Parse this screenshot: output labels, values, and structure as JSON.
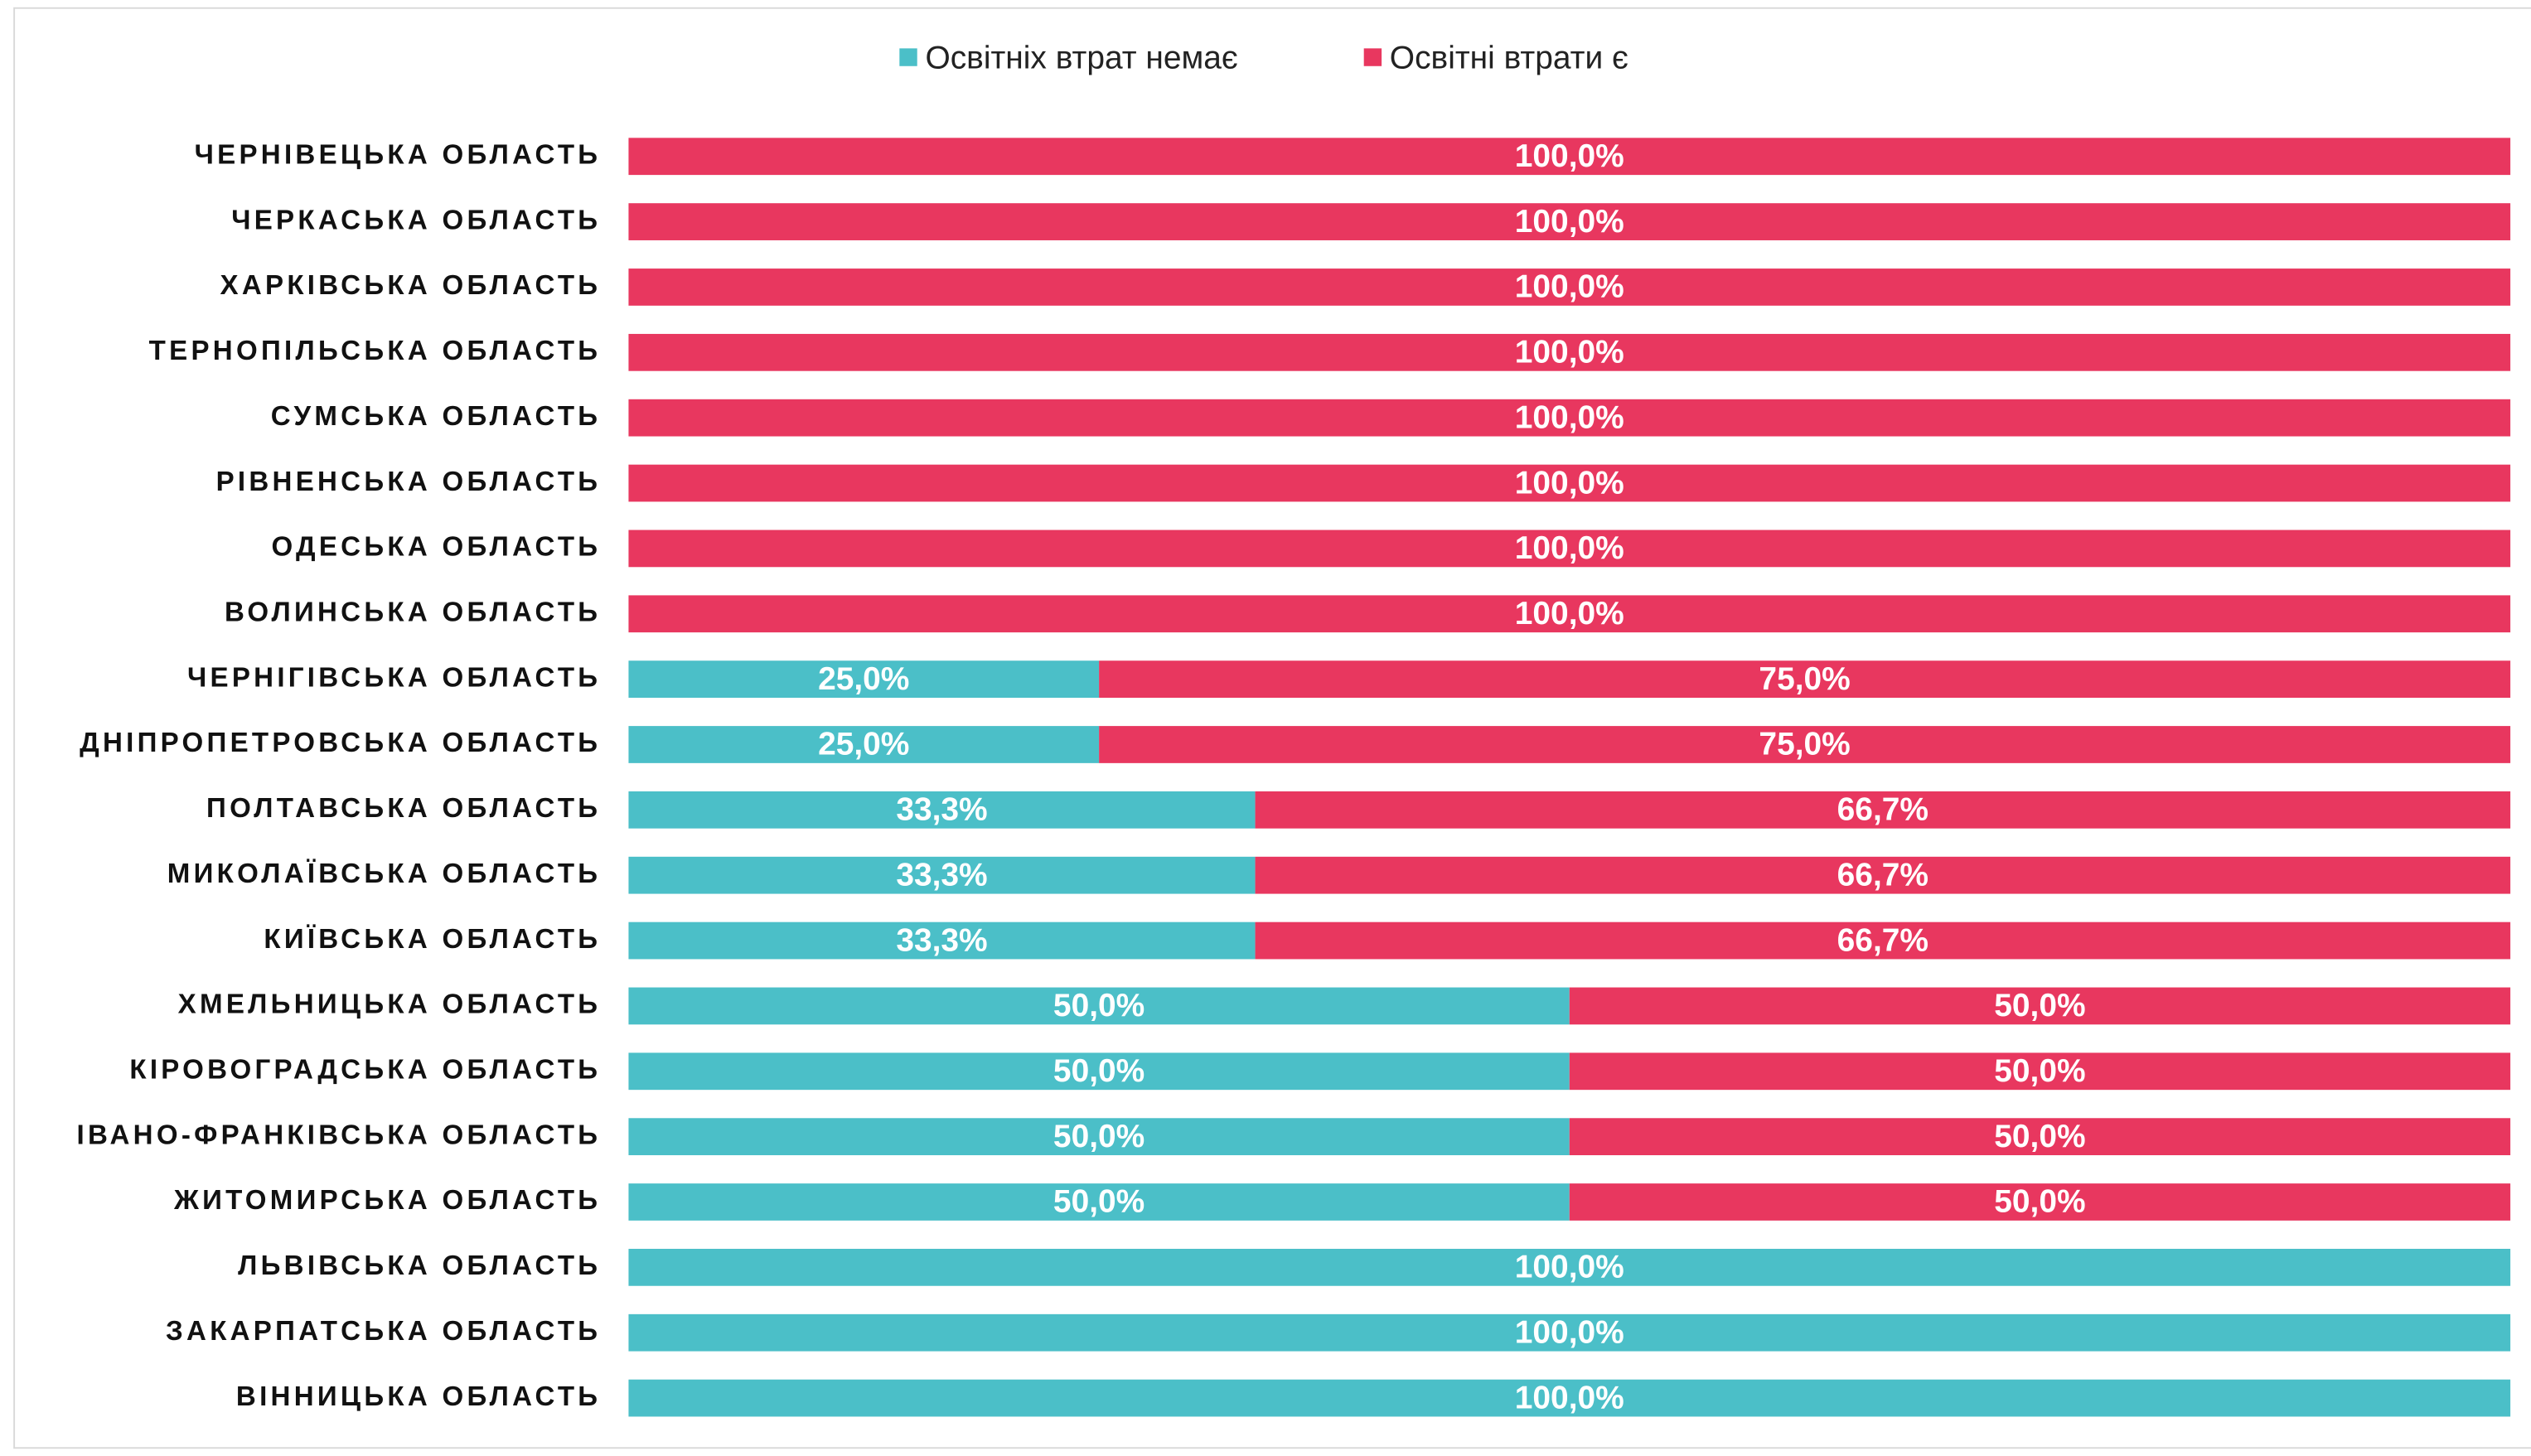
{
  "chart_data": {
    "type": "stacked-barh",
    "categories": [
      "ЧЕРНІВЕЦЬКА ОБЛАСТЬ",
      "ЧЕРКАСЬКА ОБЛАСТЬ",
      "ХАРКІВСЬКА ОБЛАСТЬ",
      "ТЕРНОПІЛЬСЬКА ОБЛАСТЬ",
      "СУМСЬКА ОБЛАСТЬ",
      "РІВНЕНСЬКА ОБЛАСТЬ",
      "ОДЕСЬКА ОБЛАСТЬ",
      "ВОЛИНСЬКА ОБЛАСТЬ",
      "ЧЕРНІГІВСЬКА ОБЛАСТЬ",
      "ДНІПРОПЕТРОВСЬКА ОБЛАСТЬ",
      "ПОЛТАВСЬКА ОБЛАСТЬ",
      "МИКОЛАЇВСЬКА ОБЛАСТЬ",
      "КИЇВСЬКА ОБЛАСТЬ",
      "ХМЕЛЬНИЦЬКА ОБЛАСТЬ",
      "КІРОВОГРАДСЬКА ОБЛАСТЬ",
      "ІВАНО-ФРАНКІВСЬКА ОБЛАСТЬ",
      "ЖИТОМИРСЬКА ОБЛАСТЬ",
      "ЛЬВІВСЬКА ОБЛАСТЬ",
      "ЗАКАРПАТСЬКА ОБЛАСТЬ",
      "ВІННИЦЬКА ОБЛАСТЬ"
    ],
    "series": [
      {
        "name": "Освітніх втрат немає",
        "color": "#4bbfc8",
        "values": [
          0,
          0,
          0,
          0,
          0,
          0,
          0,
          0,
          25,
          25,
          33.3,
          33.3,
          33.3,
          50,
          50,
          50,
          50,
          100,
          100,
          100
        ],
        "value_labels": [
          null,
          null,
          null,
          null,
          null,
          null,
          null,
          null,
          "25,0%",
          "25,0%",
          "33,3%",
          "33,3%",
          "33,3%",
          "50,0%",
          "50,0%",
          "50,0%",
          "50,0%",
          "100,0%",
          "100,0%",
          "100,0%"
        ]
      },
      {
        "name": "Освітні втрати є",
        "color": "#e8375f",
        "values": [
          100,
          100,
          100,
          100,
          100,
          100,
          100,
          100,
          75,
          75,
          66.7,
          66.7,
          66.7,
          50,
          50,
          50,
          50,
          0,
          0,
          0
        ],
        "value_labels": [
          "100,0%",
          "100,0%",
          "100,0%",
          "100,0%",
          "100,0%",
          "100,0%",
          "100,0%",
          "100,0%",
          "75,0%",
          "75,0%",
          "66,7%",
          "66,7%",
          "66,7%",
          "50,0%",
          "50,0%",
          "50,0%",
          "50,0%",
          null,
          null,
          null
        ]
      }
    ],
    "xlim": [
      0,
      100
    ],
    "legend": "top"
  }
}
